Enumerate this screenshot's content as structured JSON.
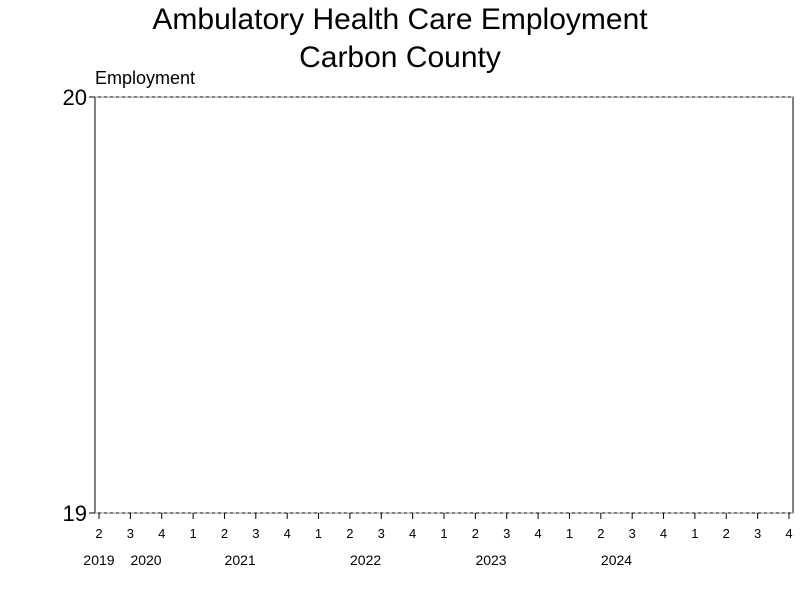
{
  "chart_data": {
    "type": "line",
    "title": "Ambulatory Health Care Employment",
    "subtitle": "Carbon County",
    "ylabel": "Employment",
    "xlabel": "",
    "ylim": [
      19,
      20
    ],
    "yticks": [
      "20",
      "19"
    ],
    "quarter_ticks": [
      "2",
      "3",
      "4",
      "1",
      "2",
      "3",
      "4",
      "1",
      "2",
      "3",
      "4",
      "1",
      "2",
      "3",
      "4",
      "1",
      "2",
      "3",
      "4",
      "1",
      "2",
      "3",
      "4"
    ],
    "year_labels": [
      "2019",
      "2020",
      "2021",
      "2022",
      "2023",
      "2024"
    ],
    "series": [],
    "grid": true
  }
}
